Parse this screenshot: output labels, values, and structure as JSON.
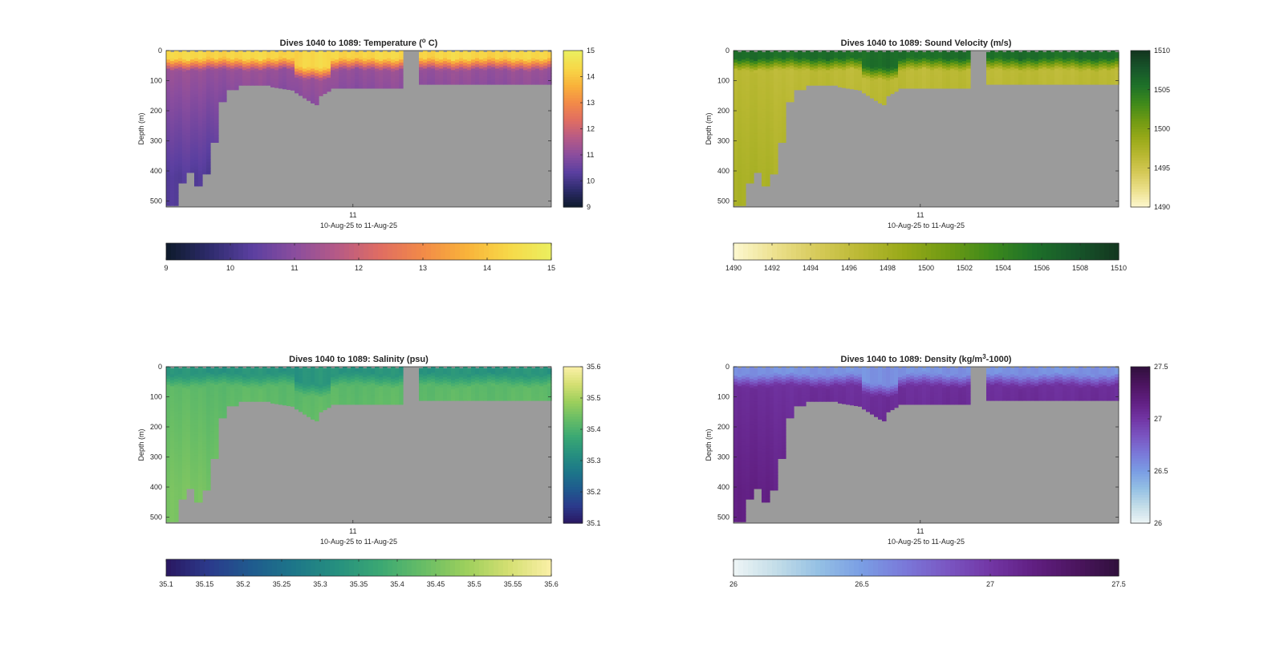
{
  "figure": {
    "chart_data": [
      {
        "type": "heatmap",
        "title": "Dives 1040 to 1089: Temperature (",
        "title_sup": "o",
        "title_tail": " C)",
        "variable": "temperature",
        "ylabel": "Depth (m)",
        "xlabel": "10-Aug-25 to 11-Aug-25",
        "xticks": [
          "11"
        ],
        "yticks": [
          0,
          100,
          200,
          300,
          400,
          500
        ],
        "ylim": [
          0,
          520
        ],
        "ydir": "reverse",
        "clim": [
          9,
          15
        ],
        "colormap": [
          "#0d1a2a",
          "#2d2b6b",
          "#5a3fa0",
          "#8a4d9e",
          "#b65a86",
          "#e06d62",
          "#f28a48",
          "#f9b23a",
          "#f7d848",
          "#ebef5f"
        ],
        "vertical_colorbar_ticks": [
          9,
          10,
          11,
          12,
          13,
          14,
          15
        ],
        "horizontal_colorbar_ticks": [
          9,
          10,
          11,
          12,
          13,
          14,
          15
        ],
        "profile": {
          "surface": 14.3,
          "mix_depth": 20,
          "thermo": 40,
          "deep": 11.2,
          "deepest": 10.2
        },
        "missing_color": "#9b9b9b"
      },
      {
        "type": "heatmap",
        "title": "Dives 1040 to 1089: Sound Velocity (m/s)",
        "variable": "sound_velocity",
        "ylabel": "Depth (m)",
        "xlabel": "10-Aug-25 to 11-Aug-25",
        "xticks": [
          "11"
        ],
        "yticks": [
          0,
          100,
          200,
          300,
          400,
          500
        ],
        "ylim": [
          0,
          520
        ],
        "ydir": "reverse",
        "clim": [
          1490,
          1510
        ],
        "colormap": [
          "#fdf8d0",
          "#ece08c",
          "#d5c957",
          "#b9b832",
          "#97a918",
          "#6f9a13",
          "#3e8a1b",
          "#1e7129",
          "#17562a",
          "#13361f"
        ],
        "vertical_colorbar_ticks": [
          1490,
          1495,
          1500,
          1505,
          1510
        ],
        "horizontal_colorbar_ticks": [
          1490,
          1492,
          1494,
          1496,
          1498,
          1500,
          1502,
          1504,
          1506,
          1508,
          1510
        ],
        "profile": {
          "surface": 1505.8,
          "mix_depth": 20,
          "thermo": 40,
          "deep": 1496.4,
          "deepest": 1497.5
        },
        "missing_color": "#9b9b9b"
      },
      {
        "type": "heatmap",
        "title": "Dives 1040 to 1089: Salinity (psu)",
        "variable": "salinity",
        "ylabel": "Depth (m)",
        "xlabel": "10-Aug-25 to 11-Aug-25",
        "xticks": [
          "11"
        ],
        "yticks": [
          0,
          100,
          200,
          300,
          400,
          500
        ],
        "ylim": [
          0,
          520
        ],
        "ydir": "reverse",
        "clim": [
          35.1,
          35.6
        ],
        "colormap": [
          "#2a1761",
          "#2b3a8c",
          "#1f5b8e",
          "#1d7789",
          "#26907f",
          "#3ba873",
          "#67bd66",
          "#9ccf5c",
          "#d4df72",
          "#fbf0a7"
        ],
        "vertical_colorbar_ticks": [
          35.1,
          35.2,
          35.3,
          35.4,
          35.5,
          35.6
        ],
        "horizontal_colorbar_ticks": [
          35.1,
          35.15,
          35.2,
          35.25,
          35.3,
          35.35,
          35.4,
          35.45,
          35.5,
          35.55,
          35.6
        ],
        "profile": {
          "surface": 35.33,
          "mix_depth": 20,
          "thermo": 40,
          "deep": 35.42,
          "deepest": 35.45
        },
        "missing_color": "#9b9b9b"
      },
      {
        "type": "heatmap",
        "title": "Dives 1040 to 1089: Density (kg/m",
        "title_sup": "3",
        "title_tail": "-1000)",
        "variable": "density",
        "ylabel": "Depth (m)",
        "xlabel": "10-Aug-25 to 11-Aug-25",
        "xticks": [
          "11"
        ],
        "yticks": [
          0,
          100,
          200,
          300,
          400,
          500
        ],
        "ylim": [
          0,
          520
        ],
        "ydir": "reverse",
        "clim": [
          26,
          27.5
        ],
        "colormap": [
          "#eef5f6",
          "#c3dde8",
          "#94c0e4",
          "#7a9de4",
          "#7a79d9",
          "#7a56c2",
          "#7236a5",
          "#611f82",
          "#4c1560",
          "#30103c"
        ],
        "vertical_colorbar_ticks": [
          26,
          26.5,
          27,
          27.5
        ],
        "horizontal_colorbar_ticks": [
          26,
          26.5,
          27,
          27.5
        ],
        "profile": {
          "surface": 26.55,
          "mix_depth": 20,
          "thermo": 40,
          "deep": 27.05,
          "deepest": 27.15
        },
        "missing_color": "#9b9b9b"
      }
    ]
  }
}
